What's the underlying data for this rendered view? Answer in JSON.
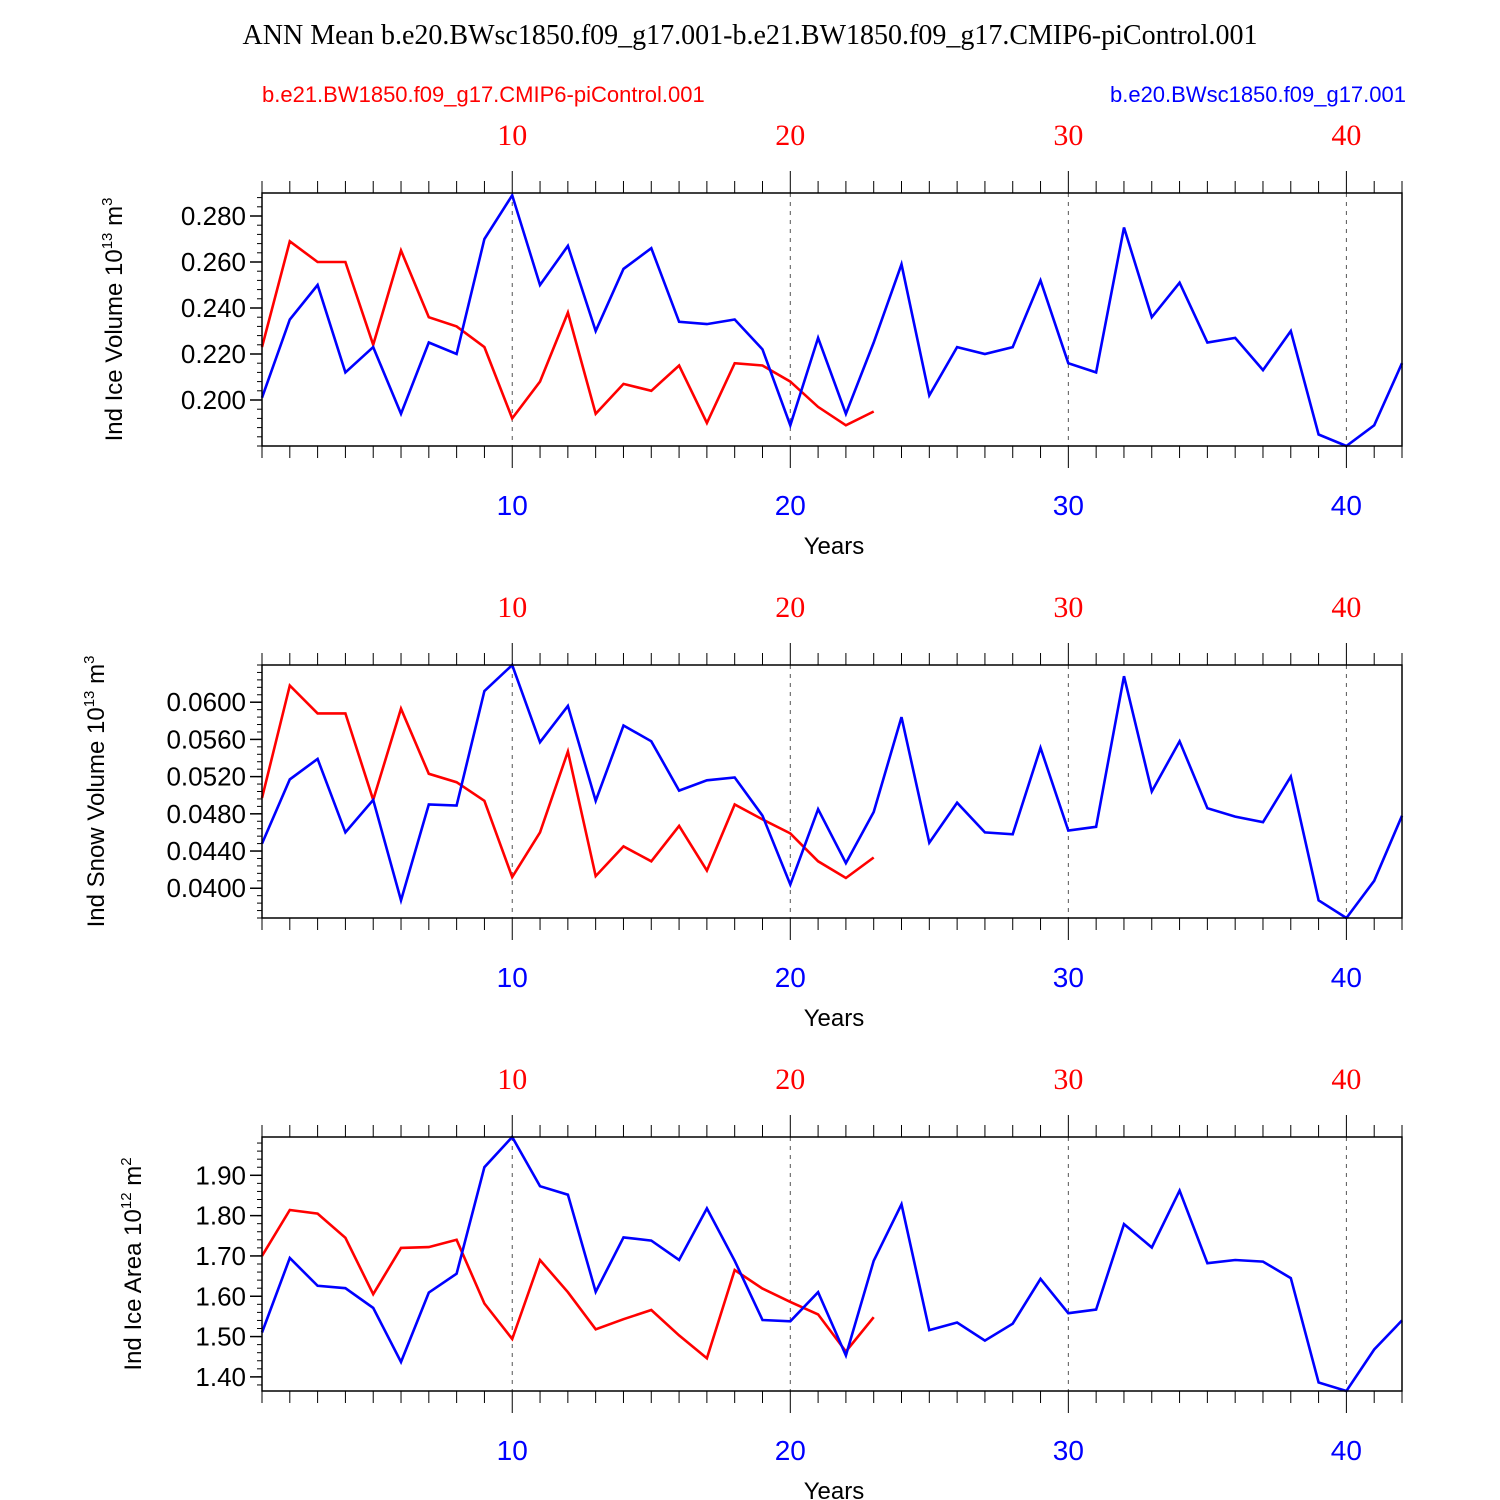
{
  "title": "ANN Mean b.e20.BWsc1850.f09_g17.001-b.e21.BW1850.f09_g17.CMIP6-piControl.001",
  "legend": {
    "left_label": "b.e21.BW1850.f09_g17.CMIP6-piControl.001",
    "right_label": "b.e20.BWsc1850.f09_g17.001"
  },
  "colors": {
    "case_red": "#ff0000",
    "case_blue": "#0000ff",
    "axis": "#000000",
    "grid": "#555555"
  },
  "chart_data": [
    {
      "type": "line",
      "ylabel": "Ind Ice Volume 10^13 m^3",
      "ylabel_parts": {
        "prefix": "Ind Ice Volume 10",
        "exp1": "13",
        "unit": " m",
        "exp2": "3"
      },
      "xlabel": "Years",
      "xlim": [
        1,
        42
      ],
      "ylim": [
        0.18,
        0.29
      ],
      "yticks": [
        0.2,
        0.22,
        0.24,
        0.26,
        0.28
      ],
      "ytick_labels": [
        "0.200",
        "0.220",
        "0.240",
        "0.260",
        "0.280"
      ],
      "xticks": [
        10,
        20,
        30,
        40
      ],
      "xtick_labels": [
        "10",
        "20",
        "30",
        "40"
      ],
      "grid": "vertical dashed at major x ticks",
      "series": [
        {
          "name": "b.e21.BW1850.f09_g17.CMIP6-piControl.001",
          "color": "#ff0000",
          "x": [
            1,
            2,
            3,
            4,
            5,
            6,
            7,
            8,
            9,
            10,
            11,
            12,
            13,
            14,
            15,
            16,
            17,
            18,
            19,
            20,
            21,
            22,
            23
          ],
          "values": [
            0.223,
            0.269,
            0.26,
            0.26,
            0.224,
            0.265,
            0.236,
            0.232,
            0.223,
            0.192,
            0.208,
            0.238,
            0.194,
            0.207,
            0.204,
            0.215,
            0.19,
            0.216,
            0.215,
            0.208,
            0.197,
            0.189,
            0.195
          ]
        },
        {
          "name": "b.e20.BWsc1850.f09_g17.001",
          "color": "#0000ff",
          "x": [
            1,
            2,
            3,
            4,
            5,
            6,
            7,
            8,
            9,
            10,
            11,
            12,
            13,
            14,
            15,
            16,
            17,
            18,
            19,
            20,
            21,
            22,
            23,
            24,
            25,
            26,
            27,
            28,
            29,
            30,
            31,
            32,
            33,
            34,
            35,
            36,
            37,
            38,
            39,
            40,
            41,
            42
          ],
          "values": [
            0.201,
            0.235,
            0.25,
            0.212,
            0.223,
            0.194,
            0.225,
            0.22,
            0.27,
            0.289,
            0.25,
            0.267,
            0.23,
            0.257,
            0.266,
            0.234,
            0.233,
            0.235,
            0.222,
            0.189,
            0.227,
            0.194,
            0.225,
            0.259,
            0.202,
            0.223,
            0.22,
            0.223,
            0.252,
            0.216,
            0.212,
            0.275,
            0.236,
            0.251,
            0.225,
            0.227,
            0.213,
            0.23,
            0.185,
            0.18,
            0.189,
            0.216
          ]
        }
      ]
    },
    {
      "type": "line",
      "ylabel": "Ind Snow Volume 10^13 m^3",
      "ylabel_parts": {
        "prefix": "Ind Snow Volume 10",
        "exp1": "13",
        "unit": " m",
        "exp2": "3"
      },
      "xlabel": "Years",
      "xlim": [
        1,
        42
      ],
      "ylim": [
        0.0368,
        0.064
      ],
      "yticks": [
        0.04,
        0.044,
        0.048,
        0.052,
        0.056,
        0.06
      ],
      "ytick_labels": [
        "0.0400",
        "0.0440",
        "0.0480",
        "0.0520",
        "0.0560",
        "0.0600"
      ],
      "xticks": [
        10,
        20,
        30,
        40
      ],
      "xtick_labels": [
        "10",
        "20",
        "30",
        "40"
      ],
      "grid": "vertical dashed at major x ticks",
      "series": [
        {
          "name": "b.e21.BW1850.f09_g17.CMIP6-piControl.001",
          "color": "#ff0000",
          "x": [
            1,
            2,
            3,
            4,
            5,
            6,
            7,
            8,
            9,
            10,
            11,
            12,
            13,
            14,
            15,
            16,
            17,
            18,
            19,
            20,
            21,
            22,
            23
          ],
          "values": [
            0.0497,
            0.0618,
            0.0588,
            0.0588,
            0.0495,
            0.0593,
            0.0523,
            0.0514,
            0.0494,
            0.0412,
            0.046,
            0.0547,
            0.0413,
            0.0445,
            0.0429,
            0.0467,
            0.0419,
            0.049,
            0.0474,
            0.0459,
            0.0429,
            0.0411,
            0.0433
          ]
        },
        {
          "name": "b.e20.BWsc1850.f09_g17.001",
          "color": "#0000ff",
          "x": [
            1,
            2,
            3,
            4,
            5,
            6,
            7,
            8,
            9,
            10,
            11,
            12,
            13,
            14,
            15,
            16,
            17,
            18,
            19,
            20,
            21,
            22,
            23,
            24,
            25,
            26,
            27,
            28,
            29,
            30,
            31,
            32,
            33,
            34,
            35,
            36,
            37,
            38,
            39,
            40,
            41,
            42
          ],
          "values": [
            0.0448,
            0.0517,
            0.0539,
            0.046,
            0.0495,
            0.0387,
            0.049,
            0.0489,
            0.0612,
            0.064,
            0.0557,
            0.0596,
            0.0494,
            0.0575,
            0.0558,
            0.0505,
            0.0516,
            0.0519,
            0.0478,
            0.0404,
            0.0485,
            0.0427,
            0.0482,
            0.0584,
            0.0449,
            0.0492,
            0.046,
            0.0458,
            0.0551,
            0.0462,
            0.0466,
            0.0628,
            0.0504,
            0.0558,
            0.0486,
            0.0477,
            0.0471,
            0.052,
            0.0387,
            0.0368,
            0.0408,
            0.0478
          ]
        }
      ]
    },
    {
      "type": "line",
      "ylabel": "Ind Ice Area 10^12 m^2",
      "ylabel_parts": {
        "prefix": "Ind Ice Area 10",
        "exp1": "12",
        "unit": " m",
        "exp2": "2"
      },
      "xlabel": "Years",
      "xlim": [
        1,
        42
      ],
      "ylim": [
        1.365,
        1.995
      ],
      "yticks": [
        1.4,
        1.5,
        1.6,
        1.7,
        1.8,
        1.9
      ],
      "ytick_labels": [
        "1.40",
        "1.50",
        "1.60",
        "1.70",
        "1.80",
        "1.90"
      ],
      "xticks": [
        10,
        20,
        30,
        40
      ],
      "xtick_labels": [
        "10",
        "20",
        "30",
        "40"
      ],
      "grid": "vertical dashed at major x ticks",
      "series": [
        {
          "name": "b.e21.BW1850.f09_g17.CMIP6-piControl.001",
          "color": "#ff0000",
          "x": [
            1,
            2,
            3,
            4,
            5,
            6,
            7,
            8,
            9,
            10,
            11,
            12,
            13,
            14,
            15,
            16,
            17,
            18,
            19,
            20,
            21,
            22,
            23
          ],
          "values": [
            1.7,
            1.814,
            1.805,
            1.745,
            1.605,
            1.72,
            1.722,
            1.74,
            1.582,
            1.494,
            1.69,
            1.61,
            1.518,
            1.543,
            1.566,
            1.503,
            1.446,
            1.665,
            1.619,
            1.586,
            1.555,
            1.463,
            1.548
          ]
        },
        {
          "name": "b.e20.BWsc1850.f09_g17.001",
          "color": "#0000ff",
          "x": [
            1,
            2,
            3,
            4,
            5,
            6,
            7,
            8,
            9,
            10,
            11,
            12,
            13,
            14,
            15,
            16,
            17,
            18,
            19,
            20,
            21,
            22,
            23,
            24,
            25,
            26,
            27,
            28,
            29,
            30,
            31,
            32,
            33,
            34,
            35,
            36,
            37,
            38,
            39,
            40,
            41,
            42
          ],
          "values": [
            1.51,
            1.695,
            1.626,
            1.62,
            1.571,
            1.437,
            1.609,
            1.656,
            1.92,
            1.995,
            1.873,
            1.852,
            1.611,
            1.746,
            1.738,
            1.69,
            1.818,
            1.688,
            1.541,
            1.538,
            1.61,
            1.453,
            1.688,
            1.828,
            1.516,
            1.535,
            1.49,
            1.532,
            1.643,
            1.558,
            1.567,
            1.779,
            1.721,
            1.862,
            1.682,
            1.69,
            1.686,
            1.645,
            1.386,
            1.365,
            1.468,
            1.54
          ]
        }
      ]
    }
  ]
}
